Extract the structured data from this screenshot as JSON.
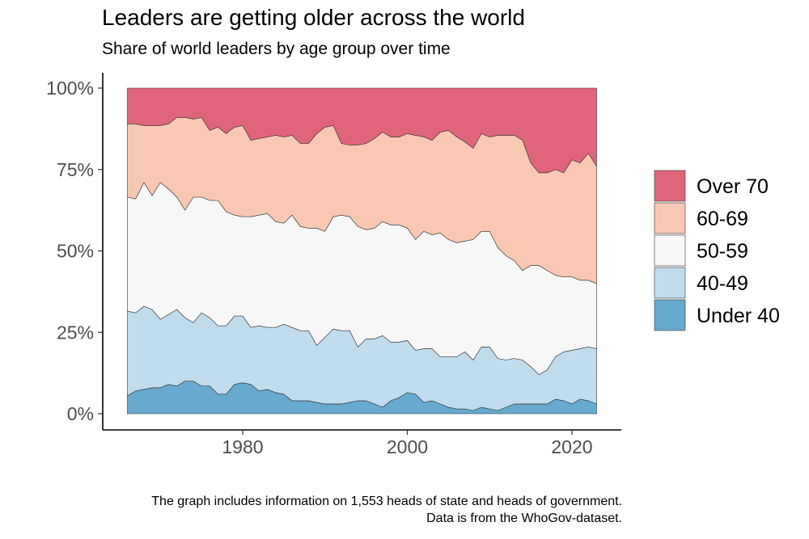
{
  "chart_data": {
    "type": "area",
    "stacked": true,
    "normalized": true,
    "title": "Leaders are getting older across the world",
    "subtitle": "Share of world leaders by age group over time",
    "caption_line1": "The graph includes information on 1,553 heads of state and heads of government.",
    "caption_line2": "Data is from the WhoGov-dataset.",
    "xlabel": "",
    "ylabel": "",
    "xlim": [
      1963,
      2026
    ],
    "ylim": [
      0,
      1
    ],
    "x_ticks": [
      1980,
      2000,
      2020
    ],
    "y_ticks": [
      {
        "value": 0,
        "label": "0%"
      },
      {
        "value": 0.25,
        "label": "25%"
      },
      {
        "value": 0.5,
        "label": "50%"
      },
      {
        "value": 0.75,
        "label": "75%"
      },
      {
        "value": 1,
        "label": "100%"
      }
    ],
    "legend_position": "right",
    "x": [
      1966,
      1967,
      1968,
      1969,
      1970,
      1971,
      1972,
      1973,
      1974,
      1975,
      1976,
      1977,
      1978,
      1979,
      1980,
      1981,
      1982,
      1983,
      1984,
      1985,
      1986,
      1987,
      1988,
      1989,
      1990,
      1991,
      1992,
      1993,
      1994,
      1995,
      1996,
      1997,
      1998,
      1999,
      2000,
      2001,
      2002,
      2003,
      2004,
      2005,
      2006,
      2007,
      2008,
      2009,
      2010,
      2011,
      2012,
      2013,
      2014,
      2015,
      2016,
      2017,
      2018,
      2019,
      2020,
      2021,
      2022,
      2023
    ],
    "series": [
      {
        "name": "Under 40",
        "color": "#67a9cf",
        "values": [
          0.055,
          0.07,
          0.075,
          0.08,
          0.08,
          0.09,
          0.085,
          0.1,
          0.1,
          0.085,
          0.085,
          0.06,
          0.06,
          0.09,
          0.095,
          0.09,
          0.07,
          0.075,
          0.065,
          0.06,
          0.04,
          0.04,
          0.04,
          0.035,
          0.03,
          0.03,
          0.03,
          0.035,
          0.04,
          0.04,
          0.03,
          0.02,
          0.04,
          0.05,
          0.065,
          0.06,
          0.035,
          0.04,
          0.03,
          0.02,
          0.015,
          0.015,
          0.01,
          0.02,
          0.015,
          0.01,
          0.02,
          0.03,
          0.03,
          0.03,
          0.03,
          0.03,
          0.045,
          0.04,
          0.03,
          0.045,
          0.04,
          0.03
        ]
      },
      {
        "name": "40-49",
        "color": "#c0dced",
        "values": [
          0.26,
          0.24,
          0.255,
          0.24,
          0.21,
          0.215,
          0.235,
          0.195,
          0.18,
          0.225,
          0.21,
          0.21,
          0.21,
          0.21,
          0.205,
          0.175,
          0.2,
          0.19,
          0.2,
          0.215,
          0.225,
          0.215,
          0.215,
          0.175,
          0.205,
          0.23,
          0.225,
          0.22,
          0.165,
          0.19,
          0.2,
          0.22,
          0.18,
          0.17,
          0.16,
          0.135,
          0.165,
          0.16,
          0.145,
          0.155,
          0.16,
          0.175,
          0.155,
          0.185,
          0.19,
          0.16,
          0.145,
          0.14,
          0.135,
          0.115,
          0.09,
          0.105,
          0.13,
          0.15,
          0.165,
          0.155,
          0.165,
          0.17
        ]
      },
      {
        "name": "50-59",
        "color": "#f7f7f7",
        "values": [
          0.35,
          0.35,
          0.38,
          0.35,
          0.42,
          0.385,
          0.345,
          0.33,
          0.385,
          0.355,
          0.36,
          0.385,
          0.35,
          0.31,
          0.305,
          0.34,
          0.34,
          0.35,
          0.325,
          0.31,
          0.345,
          0.32,
          0.315,
          0.36,
          0.325,
          0.345,
          0.355,
          0.35,
          0.37,
          0.335,
          0.34,
          0.35,
          0.36,
          0.36,
          0.345,
          0.34,
          0.36,
          0.35,
          0.38,
          0.36,
          0.35,
          0.34,
          0.37,
          0.355,
          0.355,
          0.34,
          0.32,
          0.3,
          0.275,
          0.31,
          0.335,
          0.305,
          0.25,
          0.23,
          0.225,
          0.21,
          0.205,
          0.2
        ]
      },
      {
        "name": "60-69",
        "color": "#f8c8b3",
        "values": [
          0.225,
          0.23,
          0.175,
          0.215,
          0.175,
          0.2,
          0.245,
          0.285,
          0.24,
          0.245,
          0.215,
          0.225,
          0.24,
          0.27,
          0.28,
          0.235,
          0.235,
          0.235,
          0.265,
          0.265,
          0.245,
          0.255,
          0.26,
          0.29,
          0.32,
          0.28,
          0.22,
          0.22,
          0.25,
          0.265,
          0.275,
          0.275,
          0.27,
          0.27,
          0.29,
          0.32,
          0.29,
          0.29,
          0.31,
          0.335,
          0.325,
          0.305,
          0.28,
          0.3,
          0.29,
          0.345,
          0.37,
          0.385,
          0.4,
          0.315,
          0.285,
          0.3,
          0.325,
          0.32,
          0.36,
          0.36,
          0.39,
          0.36
        ]
      },
      {
        "name": "Over 70",
        "color": "#e0657a",
        "values": [
          0.11,
          0.11,
          0.115,
          0.115,
          0.115,
          0.11,
          0.09,
          0.09,
          0.095,
          0.09,
          0.13,
          0.12,
          0.14,
          0.12,
          0.115,
          0.16,
          0.155,
          0.15,
          0.145,
          0.15,
          0.145,
          0.17,
          0.17,
          0.14,
          0.12,
          0.115,
          0.17,
          0.175,
          0.175,
          0.17,
          0.155,
          0.135,
          0.15,
          0.15,
          0.14,
          0.145,
          0.15,
          0.16,
          0.135,
          0.13,
          0.15,
          0.165,
          0.185,
          0.14,
          0.15,
          0.145,
          0.145,
          0.145,
          0.16,
          0.23,
          0.26,
          0.26,
          0.25,
          0.26,
          0.22,
          0.23,
          0.2,
          0.24
        ]
      }
    ]
  }
}
